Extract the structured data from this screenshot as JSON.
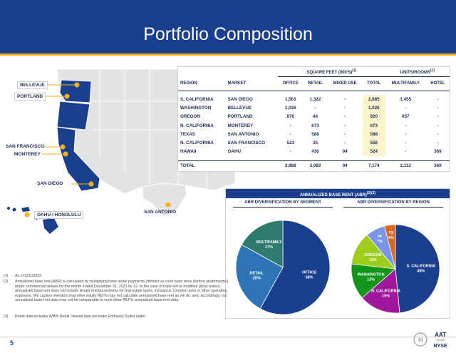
{
  "header": {
    "title": "Portfolio Composition"
  },
  "map": {
    "labels": [
      "BELLEVUE",
      "PORTLAND",
      "SAN FRANCISCO",
      "MONTEREY",
      "SAN DIEGO",
      "OAHU / HONOLULU",
      "SAN ANTONIO"
    ]
  },
  "table": {
    "group_headers": {
      "sqft": "SQUARE FEET (000'S)",
      "sqft_sup": "(1)",
      "units": "UNITS/ROOMS",
      "units_sup": "(1)"
    },
    "columns": [
      "REGION",
      "MARKET",
      "OFFICE",
      "RETAIL",
      "MIXED USE",
      "TOTAL",
      "MULTIFAMILY",
      "HOTEL"
    ],
    "rows": [
      [
        "S. CALIFORNIA",
        "SAN DIEGO",
        "1,563",
        "1,322",
        "-",
        "2,885",
        "1,455",
        "-"
      ],
      [
        "WASHINGTON",
        "BELLEVUE",
        "1,026",
        "-",
        "-",
        "1,026",
        "-",
        "-"
      ],
      [
        "OREGON",
        "PORTLAND",
        "876",
        "44",
        "-",
        "920",
        "657",
        "-"
      ],
      [
        "N. CALIFORNIA",
        "MONTEREY",
        "-",
        "673",
        "-",
        "673",
        "-",
        "-"
      ],
      [
        "TEXAS",
        "SAN ANTONIO",
        "-",
        "588",
        "-",
        "588",
        "-",
        "-"
      ],
      [
        "N. CALIFORNIA",
        "SAN FRANCISCO",
        "523",
        "35",
        "-",
        "558",
        "-",
        "-"
      ],
      [
        "HAWAII",
        "OAHU",
        "-",
        "430",
        "94",
        "524",
        "-",
        "369"
      ]
    ],
    "total": [
      "TOTAL",
      "",
      "3,988",
      "3,092",
      "94",
      "7,174",
      "2,112",
      "369"
    ]
  },
  "abr": {
    "title": "ANNUALIZED BASE RENT (ABR)",
    "title_sup": "(2)(3)"
  },
  "chart_data": [
    {
      "type": "pie",
      "title": "ABR DIVERSIFICATION BY SEGMENT",
      "categories": [
        "OFFICE",
        "RETAIL",
        "MULTIFAMILY"
      ],
      "values": [
        58,
        25,
        17
      ],
      "labels": [
        "58%",
        "25%",
        "17%"
      ],
      "colors": [
        "#1b3f8f",
        "#2e75b6",
        "#2e7a6e"
      ]
    },
    {
      "type": "pie",
      "title": "ABR DIVERSIFICATION BY REGION",
      "categories": [
        "S. CALIFORNIA",
        "N. CALIFORNIA",
        "WASHINGTON",
        "OREGON",
        "HI",
        "TX"
      ],
      "values": [
        48,
        15,
        13,
        12,
        7,
        4
      ],
      "labels": [
        "48%",
        "15%",
        "13%",
        "12%",
        "7%",
        "4%"
      ],
      "colors": [
        "#1b3f8f",
        "#a0179a",
        "#13941a",
        "#9ccc1c",
        "#7a94e6",
        "#d8691f"
      ]
    }
  ],
  "footnotes": [
    {
      "n": "(1)",
      "text": "As of 3/31/2022."
    },
    {
      "n": "(2)",
      "text": "Annualized base rent (ABR) is calculated by multiplying base rental payments (defined as cash base rents (before abatements)) under commenced leases for the month ended December 31, 2021 by 12. In the case of triple-net or modified gross leases, annualized base rent does not include tenant reimbursements for real estate taxes, insurance, common area or other operating expenses. We caution investors that other equity REITs may not calculate annualized base rent as we do, and, accordingly, our annualized base rent data may not be comparable to such other REITs' annualized base rent data."
    },
    {
      "n": "(3)",
      "text": "Retail data includes WBW Retail. Hawaii data excludes Embassy Suites Hotel."
    }
  ],
  "footer": {
    "page": "5",
    "logo_text": "AAT",
    "logo_sub": "LISTED",
    "exchange": "NYSE",
    "anniv": "10"
  }
}
